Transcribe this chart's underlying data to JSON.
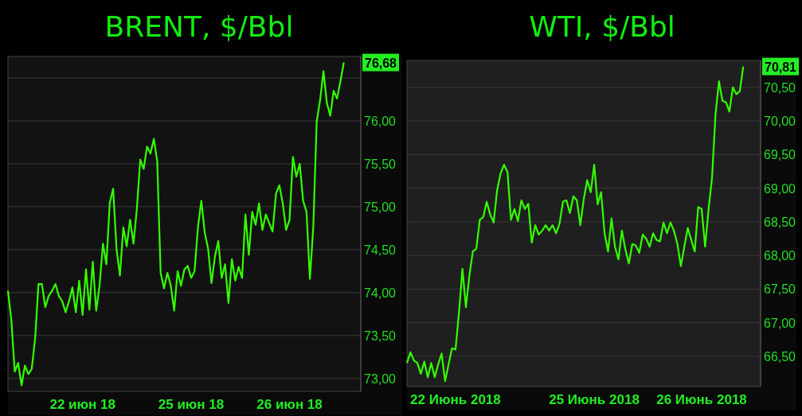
{
  "chart_data": [
    {
      "type": "line",
      "title": "BRENT, $/Bbl",
      "ylim": [
        72.85,
        76.75
      ],
      "grid": "y",
      "marker": "none",
      "line_style": "solid",
      "categories": [
        null,
        null,
        null,
        null,
        null,
        null,
        null,
        null,
        null,
        null,
        null,
        null,
        null,
        null,
        null,
        null,
        null,
        null,
        null,
        null,
        null,
        null,
        "22 июн 18",
        null,
        null,
        null,
        null,
        null,
        null,
        null,
        null,
        null,
        null,
        null,
        null,
        null,
        null,
        null,
        null,
        null,
        null,
        null,
        null,
        null,
        null,
        null,
        null,
        null,
        null,
        null,
        null,
        null,
        null,
        null,
        "25 июн 18",
        null,
        null,
        null,
        null,
        null,
        null,
        null,
        null,
        null,
        null,
        null,
        null,
        null,
        null,
        null,
        null,
        null,
        null,
        null,
        null,
        null,
        null,
        null,
        null,
        null,
        null,
        null,
        null,
        "26 июн 18",
        null,
        null,
        null,
        null,
        null,
        null,
        null,
        null,
        null,
        null,
        null,
        null,
        null,
        null,
        null,
        null,
        null,
        null,
        null,
        null,
        null
      ],
      "yticks": [
        {
          "value": 73,
          "label": "73,00"
        },
        {
          "value": 73.5,
          "label": "73,50"
        },
        {
          "value": 74,
          "label": "74,00"
        },
        {
          "value": 74.5,
          "label": "74,50"
        },
        {
          "value": 75,
          "label": "75,00"
        },
        {
          "value": 75.5,
          "label": "75,50"
        },
        {
          "value": 76,
          "label": "76,00"
        },
        {
          "value": 76.5,
          "label": null
        }
      ],
      "annotations": [
        "76,68"
      ],
      "series": [
        {
          "color": "#33ff00",
          "values": [
            74.02,
            73.68,
            73.08,
            73.18,
            72.92,
            73.15,
            73.05,
            73.11,
            73.46,
            74.1,
            74.1,
            73.83,
            73.96,
            74.02,
            74.1,
            73.96,
            73.9,
            73.77,
            73.9,
            74.06,
            73.77,
            74.14,
            73.74,
            74.27,
            73.8,
            74.36,
            73.79,
            74.08,
            74.57,
            74.33,
            75.04,
            75.21,
            74.51,
            74.2,
            74.76,
            74.54,
            74.85,
            74.57,
            74.98,
            75.55,
            75.44,
            75.7,
            75.62,
            75.79,
            75.53,
            74.23,
            74.05,
            74.23,
            74.08,
            73.79,
            74.25,
            74.08,
            74.27,
            74.31,
            74.17,
            74.25,
            74.76,
            75.07,
            74.7,
            74.51,
            74.11,
            74.42,
            74.6,
            74.17,
            74.33,
            73.88,
            74.39,
            74.14,
            74.3,
            74.17,
            74.91,
            74.44,
            74.94,
            74.79,
            75.04,
            74.73,
            74.91,
            74.81,
            74.71,
            75.15,
            75.25,
            75.04,
            74.73,
            74.85,
            75.58,
            75.35,
            75.5,
            75.07,
            74.94,
            74.16,
            74.76,
            75.99,
            76.24,
            76.58,
            76.21,
            76.06,
            76.35,
            76.26,
            76.46,
            76.68,
            null,
            null,
            null,
            null,
            null
          ]
        }
      ]
    },
    {
      "type": "line",
      "title": "WTI, $/Bbl",
      "ylim": [
        66.05,
        70.9
      ],
      "grid": "y",
      "marker": "none",
      "line_style": "solid",
      "categories": [
        null,
        null,
        null,
        null,
        null,
        null,
        null,
        null,
        null,
        null,
        null,
        null,
        null,
        null,
        "22 Июнь 2018",
        null,
        null,
        null,
        null,
        null,
        null,
        null,
        null,
        null,
        null,
        null,
        null,
        null,
        null,
        null,
        null,
        null,
        null,
        null,
        null,
        null,
        null,
        null,
        null,
        null,
        null,
        null,
        null,
        null,
        null,
        null,
        null,
        null,
        null,
        null,
        null,
        null,
        null,
        null,
        "25 Июнь 2018",
        null,
        null,
        null,
        null,
        null,
        null,
        null,
        null,
        null,
        null,
        null,
        null,
        null,
        null,
        null,
        null,
        null,
        null,
        null,
        null,
        null,
        null,
        null,
        null,
        null,
        null,
        null,
        null,
        null,
        null,
        "26 Июнь 2018",
        null,
        null,
        null,
        null,
        null,
        null,
        null,
        null,
        null,
        null,
        null,
        null,
        null,
        null,
        null,
        null,
        null
      ],
      "yticks": [
        {
          "value": 66.5,
          "label": "66,50"
        },
        {
          "value": 67,
          "label": "67,00"
        },
        {
          "value": 67.5,
          "label": "67,50"
        },
        {
          "value": 68,
          "label": "68,00"
        },
        {
          "value": 68.5,
          "label": "68,50"
        },
        {
          "value": 69,
          "label": "69,00"
        },
        {
          "value": 69.5,
          "label": "69,50"
        },
        {
          "value": 70,
          "label": "70,00"
        },
        {
          "value": 70.5,
          "label": "70,50"
        }
      ],
      "annotations": [
        "70,81"
      ],
      "series": [
        {
          "color": "#33ff00",
          "values": [
            66.4,
            66.56,
            66.44,
            66.4,
            66.24,
            66.42,
            66.19,
            66.4,
            66.19,
            66.38,
            66.54,
            66.13,
            66.38,
            66.62,
            66.6,
            67.15,
            67.8,
            67.23,
            67.7,
            68.06,
            68.1,
            68.53,
            68.57,
            68.8,
            68.61,
            68.49,
            68.97,
            69.22,
            69.35,
            69.24,
            68.53,
            68.69,
            68.51,
            68.82,
            68.69,
            68.77,
            68.19,
            68.45,
            68.31,
            68.37,
            68.45,
            68.37,
            68.45,
            68.33,
            68.47,
            68.8,
            68.82,
            68.63,
            68.88,
            68.82,
            68.45,
            68.84,
            69.12,
            68.94,
            69.35,
            68.76,
            68.94,
            68.33,
            68.06,
            68.55,
            68.13,
            67.94,
            68.37,
            68.09,
            67.88,
            68.17,
            68.15,
            68.04,
            68.31,
            68.25,
            68.13,
            68.33,
            68.23,
            68.21,
            68.49,
            68.33,
            68.49,
            68.37,
            68.17,
            67.84,
            68.13,
            68.41,
            68.23,
            68.06,
            68.72,
            68.69,
            68.13,
            68.69,
            69.16,
            70.1,
            70.59,
            70.3,
            70.28,
            70.14,
            70.5,
            70.4,
            70.44,
            70.81,
            null,
            null,
            null,
            null,
            null
          ]
        }
      ]
    }
  ]
}
